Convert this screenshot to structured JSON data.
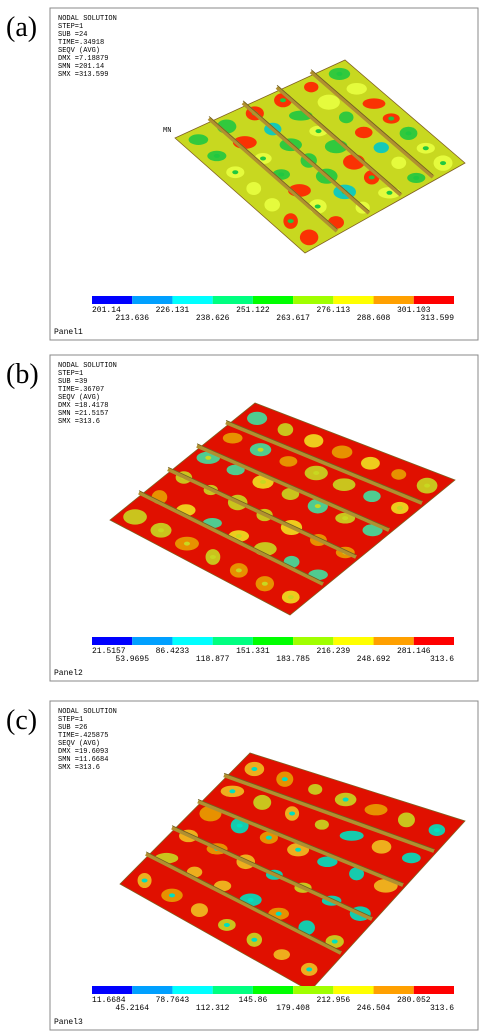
{
  "panels": [
    {
      "label": "(a)",
      "info": [
        "NODAL SOLUTION",
        "STEP=1",
        "SUB =24",
        "TIME=.34918",
        "SEQV      (AVG)",
        "DMX =7.18879",
        "SMN =201.14",
        "SMX =313.599"
      ],
      "marker": "MN",
      "legend": [
        "201.14",
        "213.636",
        "226.131",
        "238.626",
        "251.122",
        "263.617",
        "276.113",
        "288.608",
        "301.103",
        "313.599"
      ],
      "name": "Panel1"
    },
    {
      "label": "(b)",
      "info": [
        "NODAL SOLUTION",
        "STEP=1",
        "SUB =39",
        "TIME=.36707",
        "SEQV      (AVG)",
        "DMX =18.4178",
        "SMN =21.5157",
        "SMX =313.6"
      ],
      "legend": [
        "21.5157",
        "53.9695",
        "86.4233",
        "118.877",
        "151.331",
        "183.785",
        "216.239",
        "248.692",
        "281.146",
        "313.6"
      ],
      "name": "Panel2"
    },
    {
      "label": "(c)",
      "info": [
        "NODAL SOLUTION",
        "STEP=1",
        "SUB =26",
        "TIME=.425875",
        "SEQV      (AVG)",
        "DMX =19.6093",
        "SMN =11.6684",
        "SMX =313.6"
      ],
      "legend": [
        "11.6684",
        "45.2164",
        "78.7643",
        "112.312",
        "145.86",
        "179.408",
        "212.956",
        "246.504",
        "280.052",
        "313.6"
      ],
      "name": "Panel3"
    }
  ]
}
